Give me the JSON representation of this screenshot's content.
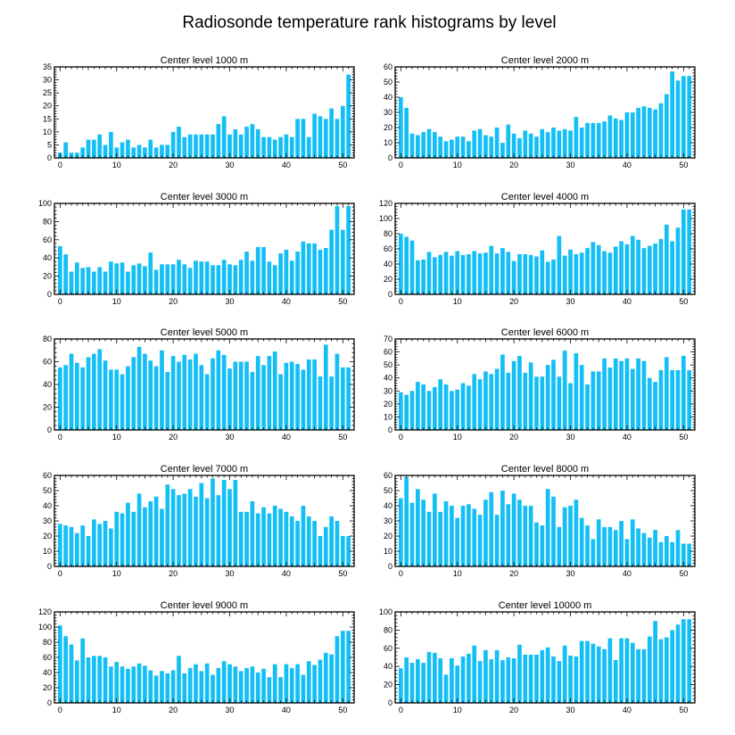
{
  "figure_title": "Radiosonde temperature rank histograms by level",
  "colors": {
    "bar": "#14bff5",
    "axis": "#000000",
    "background": "#ffffff"
  },
  "chart_data": [
    {
      "type": "bar",
      "title": "Center level 1000 m",
      "xlim": [
        -1,
        52
      ],
      "ylim": [
        0,
        35
      ],
      "xticks": [
        0,
        10,
        20,
        30,
        40,
        50
      ],
      "yticks": [
        0,
        5,
        10,
        15,
        20,
        25,
        30,
        35
      ],
      "values": [
        2,
        6,
        2,
        2,
        4,
        7,
        7,
        9,
        5,
        10,
        4,
        6,
        7,
        4,
        5,
        4,
        7,
        4,
        5,
        5,
        10,
        12,
        8,
        9,
        9,
        9,
        9,
        9,
        13,
        16,
        9,
        11,
        9,
        12,
        13,
        11,
        8,
        8,
        7,
        8,
        9,
        8,
        15,
        15,
        8,
        17,
        16,
        15,
        19,
        15,
        20,
        32
      ]
    },
    {
      "type": "bar",
      "title": "Center level 2000 m",
      "xlim": [
        -1,
        52
      ],
      "ylim": [
        0,
        60
      ],
      "xticks": [
        0,
        10,
        20,
        30,
        40,
        50
      ],
      "yticks": [
        0,
        10,
        20,
        30,
        40,
        50,
        60
      ],
      "values": [
        40,
        33,
        16,
        15,
        17,
        19,
        17,
        14,
        11,
        12,
        14,
        14,
        11,
        18,
        19,
        15,
        14,
        20,
        10,
        22,
        16,
        13,
        18,
        16,
        14,
        19,
        17,
        20,
        18,
        19,
        18,
        27,
        20,
        23,
        23,
        23,
        24,
        28,
        26,
        25,
        30,
        30,
        33,
        34,
        33,
        32,
        36,
        42,
        57,
        51,
        54,
        54
      ]
    },
    {
      "type": "bar",
      "title": "Center level 3000 m",
      "xlim": [
        -1,
        52
      ],
      "ylim": [
        0,
        100
      ],
      "xticks": [
        0,
        10,
        20,
        30,
        40,
        50
      ],
      "yticks": [
        0,
        20,
        40,
        60,
        80,
        100
      ],
      "values": [
        53,
        44,
        25,
        35,
        29,
        30,
        25,
        30,
        25,
        36,
        34,
        35,
        25,
        32,
        34,
        31,
        46,
        27,
        33,
        33,
        33,
        38,
        33,
        29,
        37,
        36,
        36,
        32,
        32,
        38,
        33,
        32,
        38,
        47,
        37,
        52,
        52,
        36,
        32,
        45,
        49,
        37,
        47,
        58,
        56,
        56,
        49,
        51,
        71,
        97,
        71,
        97
      ]
    },
    {
      "type": "bar",
      "title": "Center level 4000 m",
      "xlim": [
        -1,
        52
      ],
      "ylim": [
        0,
        120
      ],
      "xticks": [
        0,
        10,
        20,
        30,
        40,
        50
      ],
      "yticks": [
        0,
        20,
        40,
        60,
        80,
        100,
        120
      ],
      "values": [
        80,
        76,
        71,
        45,
        46,
        56,
        49,
        52,
        56,
        51,
        57,
        52,
        53,
        57,
        54,
        55,
        64,
        54,
        61,
        56,
        44,
        53,
        53,
        52,
        50,
        58,
        43,
        46,
        77,
        51,
        59,
        53,
        55,
        61,
        69,
        65,
        57,
        55,
        63,
        70,
        66,
        77,
        72,
        61,
        64,
        67,
        73,
        92,
        70,
        88,
        112,
        112
      ]
    },
    {
      "type": "bar",
      "title": "Center level 5000 m",
      "xlim": [
        -1,
        52
      ],
      "ylim": [
        0,
        80
      ],
      "xticks": [
        0,
        10,
        20,
        30,
        40,
        50
      ],
      "yticks": [
        0,
        20,
        40,
        60,
        80
      ],
      "values": [
        55,
        57,
        67,
        59,
        55,
        64,
        67,
        71,
        61,
        53,
        53,
        49,
        56,
        64,
        73,
        67,
        61,
        56,
        70,
        51,
        65,
        60,
        66,
        62,
        67,
        57,
        49,
        63,
        70,
        66,
        54,
        60,
        60,
        60,
        51,
        65,
        57,
        65,
        69,
        49,
        59,
        60,
        58,
        53,
        62,
        62,
        47,
        75,
        47,
        67,
        55,
        55
      ]
    },
    {
      "type": "bar",
      "title": "Center level 6000 m",
      "xlim": [
        -1,
        52
      ],
      "ylim": [
        0,
        70
      ],
      "xticks": [
        0,
        10,
        20,
        30,
        40,
        50
      ],
      "yticks": [
        0,
        10,
        20,
        30,
        40,
        50,
        60,
        70
      ],
      "values": [
        29,
        27,
        30,
        37,
        35,
        30,
        33,
        39,
        35,
        30,
        31,
        36,
        34,
        43,
        39,
        45,
        43,
        47,
        58,
        44,
        53,
        57,
        44,
        52,
        41,
        41,
        50,
        54,
        41,
        61,
        36,
        59,
        50,
        35,
        45,
        45,
        55,
        48,
        55,
        53,
        55,
        47,
        55,
        53,
        40,
        37,
        46,
        56,
        46,
        46,
        57,
        46
      ]
    },
    {
      "type": "bar",
      "title": "Center level 7000 m",
      "xlim": [
        -1,
        52
      ],
      "ylim": [
        0,
        60
      ],
      "xticks": [
        0,
        10,
        20,
        30,
        40,
        50
      ],
      "yticks": [
        0,
        10,
        20,
        30,
        40,
        50,
        60
      ],
      "values": [
        28,
        27,
        26,
        22,
        27,
        20,
        31,
        28,
        30,
        25,
        36,
        35,
        42,
        36,
        48,
        39,
        43,
        46,
        38,
        54,
        51,
        47,
        48,
        51,
        46,
        55,
        45,
        58,
        47,
        57,
        51,
        57,
        36,
        36,
        43,
        35,
        39,
        35,
        40,
        38,
        36,
        33,
        30,
        40,
        33,
        30,
        20,
        26,
        33,
        30,
        20,
        20
      ]
    },
    {
      "type": "bar",
      "title": "Center level 8000 m",
      "xlim": [
        -1,
        52
      ],
      "ylim": [
        0,
        60
      ],
      "xticks": [
        0,
        10,
        20,
        30,
        40,
        50
      ],
      "yticks": [
        0,
        10,
        20,
        30,
        40,
        50,
        60
      ],
      "values": [
        45,
        59,
        42,
        51,
        44,
        36,
        48,
        36,
        43,
        40,
        32,
        40,
        41,
        38,
        34,
        44,
        49,
        34,
        50,
        41,
        48,
        44,
        40,
        40,
        29,
        27,
        51,
        46,
        26,
        39,
        40,
        44,
        32,
        27,
        18,
        31,
        26,
        26,
        24,
        30,
        18,
        31,
        25,
        22,
        19,
        24,
        16,
        20,
        16,
        24,
        15,
        15
      ]
    },
    {
      "type": "bar",
      "title": "Center level 9000 m",
      "xlim": [
        -1,
        52
      ],
      "ylim": [
        0,
        120
      ],
      "xticks": [
        0,
        10,
        20,
        30,
        40,
        50
      ],
      "yticks": [
        0,
        20,
        40,
        60,
        80,
        100,
        120
      ],
      "values": [
        102,
        88,
        77,
        56,
        85,
        60,
        62,
        62,
        60,
        48,
        54,
        48,
        45,
        48,
        52,
        49,
        43,
        36,
        42,
        39,
        43,
        62,
        39,
        46,
        51,
        42,
        52,
        37,
        46,
        55,
        51,
        48,
        42,
        46,
        48,
        40,
        45,
        34,
        51,
        34,
        51,
        46,
        51,
        37,
        55,
        50,
        57,
        66,
        64,
        88,
        95,
        95
      ]
    },
    {
      "type": "bar",
      "title": "Center level 10000 m",
      "xlim": [
        -1,
        52
      ],
      "ylim": [
        0,
        100
      ],
      "xticks": [
        0,
        10,
        20,
        30,
        40,
        50
      ],
      "yticks": [
        0,
        20,
        40,
        60,
        80,
        100
      ],
      "values": [
        38,
        50,
        44,
        48,
        44,
        56,
        55,
        49,
        31,
        49,
        41,
        51,
        54,
        63,
        46,
        58,
        48,
        58,
        47,
        50,
        49,
        64,
        53,
        53,
        53,
        58,
        61,
        51,
        46,
        63,
        52,
        51,
        68,
        68,
        65,
        62,
        59,
        71,
        47,
        71,
        71,
        66,
        59,
        59,
        73,
        90,
        70,
        72,
        80,
        86,
        92,
        92
      ]
    }
  ]
}
